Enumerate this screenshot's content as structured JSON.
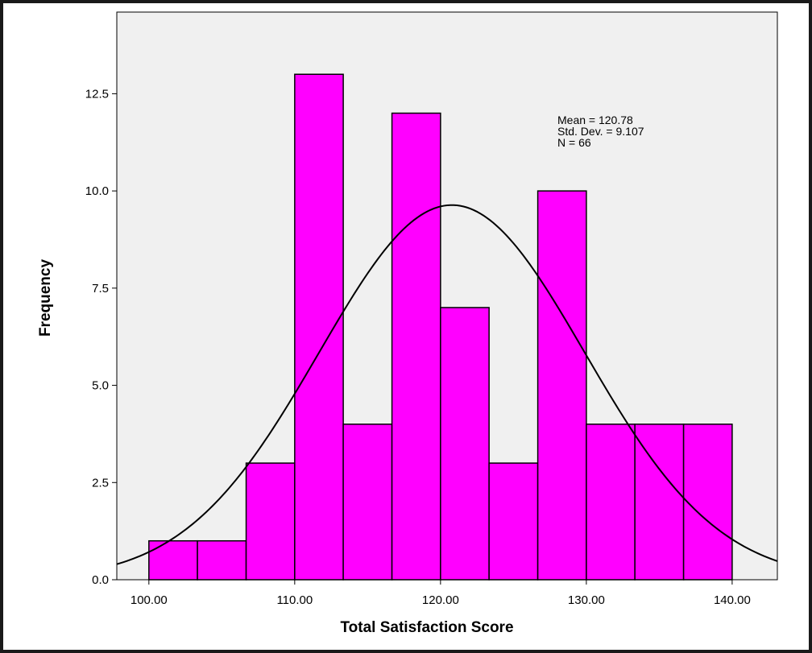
{
  "chart_data": {
    "type": "bar",
    "subtype": "histogram",
    "title": "",
    "xlabel": "Total Satisfaction Score",
    "ylabel": "Frequency",
    "bins": [
      {
        "start": 100.0,
        "end": 103.33,
        "count": 1
      },
      {
        "start": 103.33,
        "end": 106.67,
        "count": 1
      },
      {
        "start": 106.67,
        "end": 110.0,
        "count": 3
      },
      {
        "start": 110.0,
        "end": 113.33,
        "count": 13
      },
      {
        "start": 113.33,
        "end": 116.67,
        "count": 4
      },
      {
        "start": 116.67,
        "end": 120.0,
        "count": 12
      },
      {
        "start": 120.0,
        "end": 123.33,
        "count": 7
      },
      {
        "start": 123.33,
        "end": 126.67,
        "count": 3
      },
      {
        "start": 126.67,
        "end": 130.0,
        "count": 10
      },
      {
        "start": 130.0,
        "end": 133.33,
        "count": 4
      },
      {
        "start": 133.33,
        "end": 136.67,
        "count": 4
      },
      {
        "start": 136.67,
        "end": 140.0,
        "count": 4
      }
    ],
    "xlim": [
      97.8,
      143.1
    ],
    "ylim": [
      0,
      14.6
    ],
    "x_ticks": [
      100,
      110,
      120,
      130,
      140
    ],
    "x_tick_labels": [
      "100.00",
      "110.00",
      "120.00",
      "130.00",
      "140.00"
    ],
    "y_ticks": [
      0,
      2.5,
      5,
      7.5,
      10,
      12.5
    ],
    "y_tick_labels": [
      "0.0",
      "2.5",
      "5.0",
      "7.5",
      "10.0",
      "12.5"
    ],
    "normal_curve": {
      "mean": 120.78,
      "sd": 9.107,
      "n": 66,
      "bin_width": 3.333
    },
    "stats": [
      "Mean = 120.78",
      "Std. Dev. = 9.107",
      "N = 66"
    ],
    "grid": false,
    "colors": {
      "bar": "#ff00ff",
      "plot_bg": "#f0f0f0",
      "curve": "#000000"
    }
  }
}
